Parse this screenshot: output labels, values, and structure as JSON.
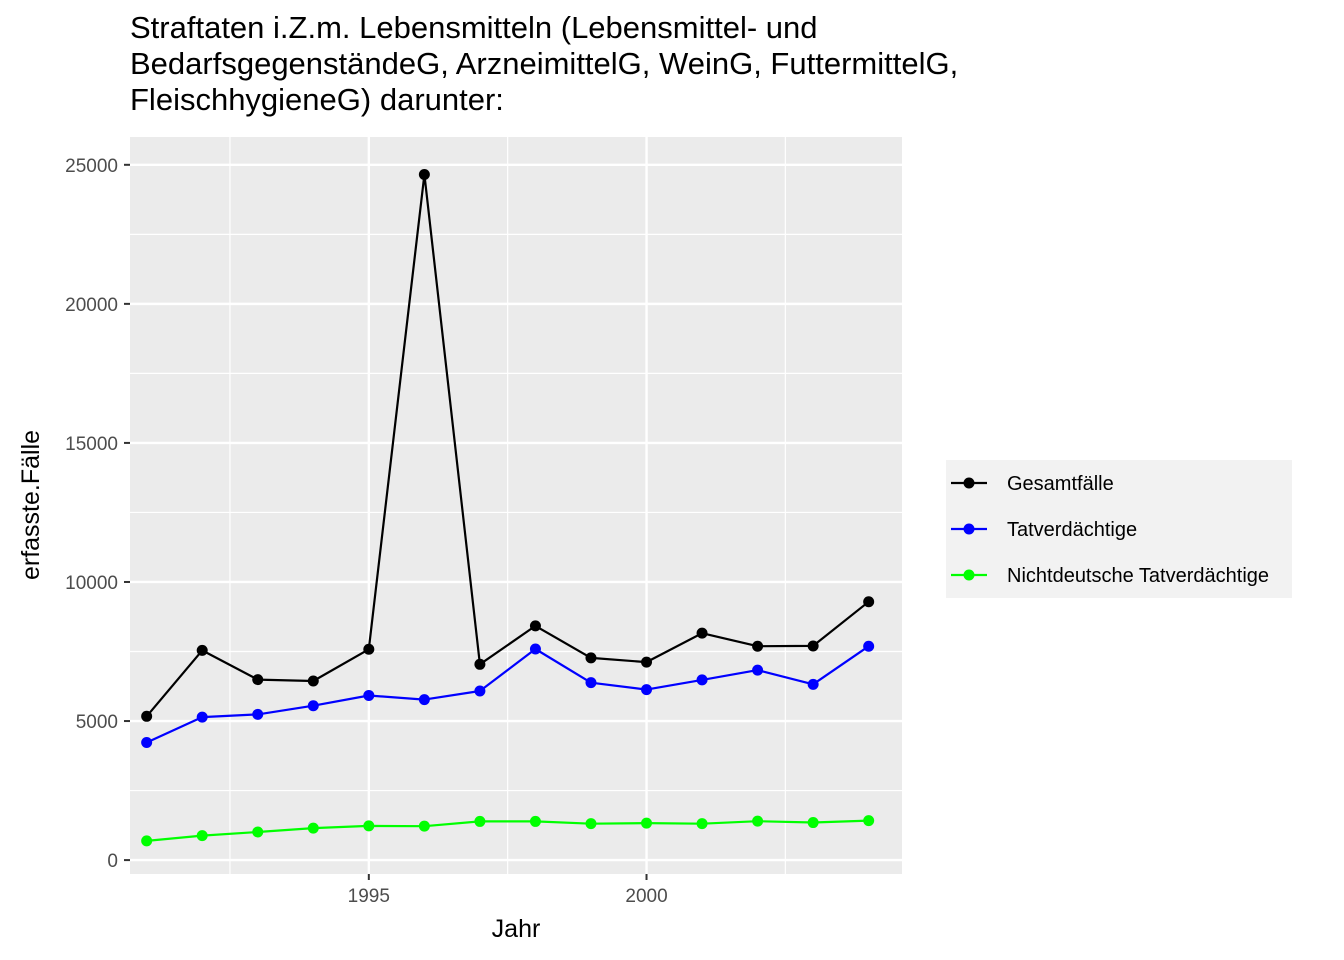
{
  "chart_data": {
    "type": "line",
    "title_lines": [
      "Straftaten i.Z.m. Lebensmitteln (Lebensmittel- und",
      "BedarfsgegenständeG, ArzneimittelG, WeinG, FuttermittelG,",
      "FleischhygieneG) darunter:"
    ],
    "xlabel": "Jahr",
    "ylabel": "erfasste.Fälle",
    "x": [
      1991,
      1992,
      1993,
      1994,
      1995,
      1996,
      1997,
      1998,
      1999,
      2000,
      2001,
      2002,
      2003,
      2004
    ],
    "xlim": [
      1990.7,
      2004.6
    ],
    "ylim": [
      -500,
      26000
    ],
    "x_ticks": [
      1995,
      2000
    ],
    "x_minor_ticks": [
      1992.5,
      1997.5,
      2002.5
    ],
    "y_ticks": [
      0,
      5000,
      10000,
      15000,
      20000,
      25000
    ],
    "y_minor_ticks": [
      2500,
      7500,
      12500,
      17500,
      22500
    ],
    "grid": true,
    "legend_position": "right",
    "series": [
      {
        "name": "Gesamtfälle",
        "color": "#000000",
        "values": [
          5170,
          7540,
          6490,
          6440,
          7580,
          24650,
          7040,
          8420,
          7270,
          7120,
          8160,
          7690,
          7700,
          9290
        ]
      },
      {
        "name": "Tatverdächtige",
        "color": "#0000ff",
        "values": [
          4230,
          5140,
          5240,
          5550,
          5920,
          5770,
          6080,
          7590,
          6380,
          6130,
          6480,
          6830,
          6320,
          7690
        ]
      },
      {
        "name": "Nichtdeutsche Tatverdächtige",
        "color": "#00ff00",
        "values": [
          690,
          880,
          1010,
          1150,
          1230,
          1220,
          1390,
          1390,
          1310,
          1330,
          1310,
          1400,
          1350,
          1420
        ]
      }
    ]
  }
}
